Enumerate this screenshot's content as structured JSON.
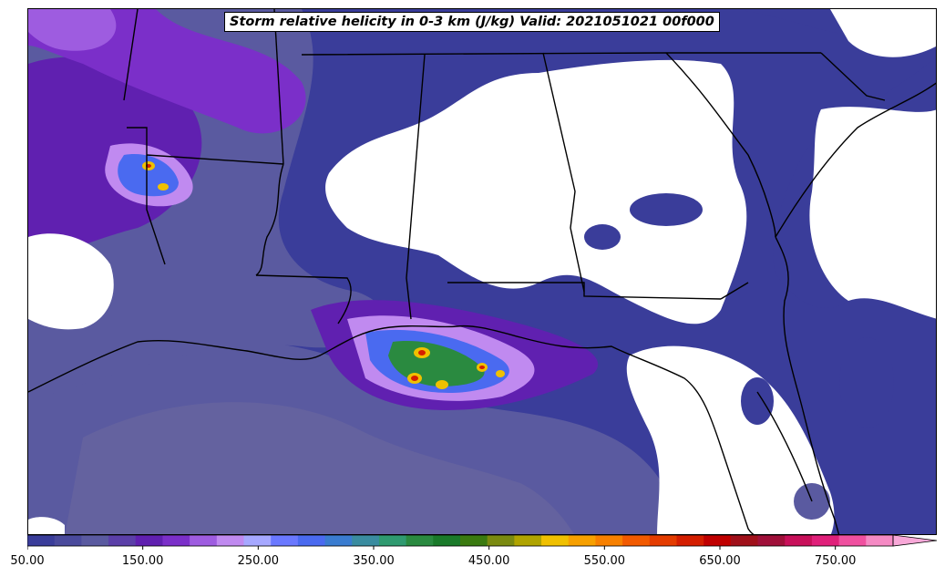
{
  "title": "Storm relative helicity in 0-3 km (J/kg) Valid: 2021051021 00f000",
  "colorbar": {
    "min": 50,
    "max": 800,
    "step": 25,
    "extend": "max",
    "tick_labels": [
      "50.00",
      "150.00",
      "250.00",
      "350.00",
      "450.00",
      "550.00",
      "650.00",
      "750.00"
    ],
    "tick_values": [
      50,
      150,
      250,
      350,
      450,
      550,
      650,
      750
    ],
    "colors": [
      "#3a3d9a",
      "#4a4a9c",
      "#5a5aa0",
      "#5b3fa8",
      "#6020b0",
      "#7b2fc9",
      "#9e5ce0",
      "#c08af0",
      "#a6a8ff",
      "#6a78ff",
      "#4a6af0",
      "#3a7cd0",
      "#3a8ca0",
      "#2f9a70",
      "#2a8a40",
      "#1a7a2a",
      "#3a7a10",
      "#7a8a10",
      "#b0a400",
      "#f0c000",
      "#f7a000",
      "#f78000",
      "#f25a00",
      "#e43c00",
      "#d41e00",
      "#c00000",
      "#a0101a",
      "#a0103a",
      "#c8105a",
      "#e0207a",
      "#f050a0",
      "#f58ac4"
    ],
    "extend_color": "#f8a8d8"
  },
  "field": {
    "background_color": "#ffffff",
    "low_color": "#3a3d9a",
    "mid_color": "#5a5aa0",
    "gulf_color": "#4a3fa0",
    "high_colors": [
      "#7b2fc9",
      "#c08af0",
      "#4a6af0",
      "#2a8a40",
      "#f0c000",
      "#d41e00"
    ]
  },
  "borders_color": "#000000"
}
